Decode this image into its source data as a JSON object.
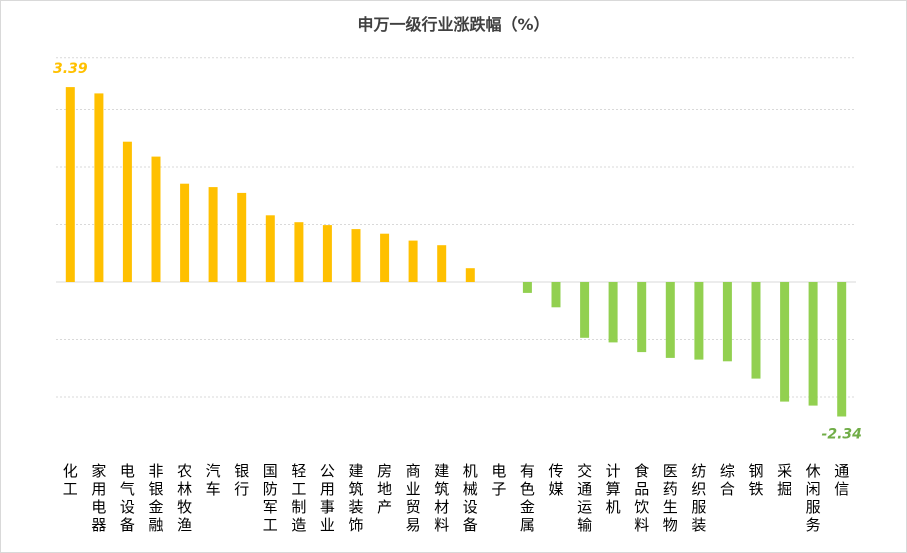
{
  "chart_data": {
    "type": "bar",
    "title": "申万一级行业涨跌幅（%）",
    "xlabel": "",
    "ylabel": "",
    "ylim": [
      -2.5,
      4.0
    ],
    "grid": true,
    "categories": [
      "化工",
      "家用电器",
      "电气设备",
      "非银金融",
      "农林牧渔",
      "汽车",
      "银行",
      "国防军工",
      "轻工制造",
      "公用事业",
      "建筑装饰",
      "房地产",
      "商业贸易",
      "建筑材料",
      "机械设备",
      "电子",
      "有色金属",
      "传媒",
      "交通运输",
      "计算机",
      "食品饮料",
      "医药生物",
      "纺织服装",
      "综合",
      "钢铁",
      "采掘",
      "休闲服务",
      "通信"
    ],
    "values": [
      3.39,
      3.28,
      2.44,
      2.18,
      1.71,
      1.65,
      1.55,
      1.16,
      1.04,
      0.99,
      0.92,
      0.84,
      0.72,
      0.64,
      0.24,
      0.0,
      -0.19,
      -0.44,
      -0.97,
      -1.05,
      -1.22,
      -1.32,
      -1.35,
      -1.38,
      -1.68,
      -2.08,
      -2.15,
      -2.34
    ],
    "data_labels": [
      {
        "index": 0,
        "text": "3.39"
      },
      {
        "index": 27,
        "text": "-2.34"
      }
    ],
    "colors": {
      "positive": "#ffc000",
      "negative": "#92d050",
      "grid": "#d9d9d9",
      "axis": "#d9d9d9"
    }
  }
}
